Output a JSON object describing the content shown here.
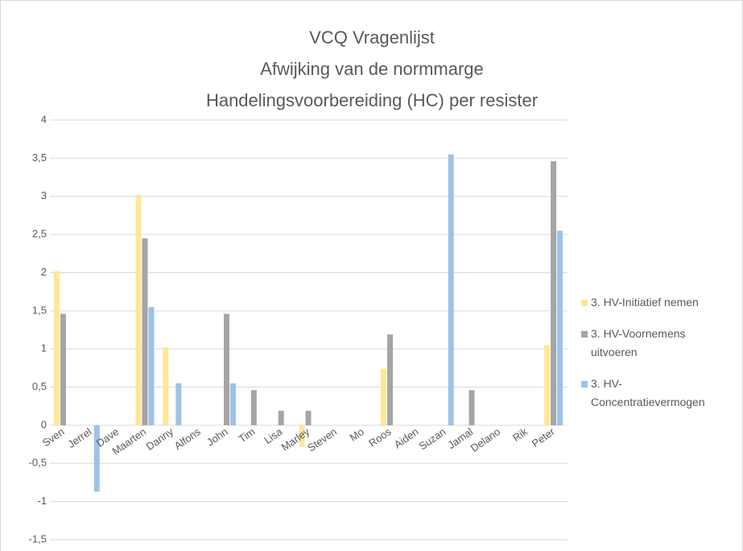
{
  "chart_data": {
    "type": "bar",
    "title": [
      "VCQ Vragenlijst",
      "Afwijking van de normmarge",
      "Handelingsvoorbereiding  (HC) per resister"
    ],
    "categories": [
      "Sven",
      "Jerrel",
      "Dave",
      "Maarten",
      "Danny",
      "Alfons",
      "John",
      "Tim",
      "Lisa",
      "Marley",
      "Steven",
      "Mo",
      "Roos",
      "Aiden",
      "Suzan",
      "Jamal",
      "Delano",
      "Rik",
      "Peter"
    ],
    "series": [
      {
        "name": "3. HV-Initiatief nemen",
        "color": "#ffe699",
        "values": [
          2.02,
          0,
          0,
          3.02,
          1.02,
          0,
          0,
          0,
          0,
          -0.28,
          0,
          0,
          0.74,
          0,
          0,
          0.01,
          0,
          0,
          1.05
        ]
      },
      {
        "name": "3. HV-Voornemens uitvoeren",
        "color": "#a5a5a5",
        "values": [
          1.46,
          0,
          0,
          2.45,
          0,
          0,
          1.46,
          0.46,
          0.19,
          0.19,
          0,
          0,
          1.19,
          0,
          0,
          0.46,
          0,
          0,
          3.46
        ]
      },
      {
        "name": "3. HV-Concentratievermogen",
        "color": "#9dc3e6",
        "values": [
          0,
          -0.87,
          0,
          1.55,
          0.55,
          0,
          0.55,
          0,
          0,
          0,
          0,
          0,
          0,
          0,
          3.55,
          0,
          0,
          0,
          2.55
        ]
      }
    ],
    "ylim": [
      -1.5,
      4
    ],
    "yticks": [
      {
        "value": -1.5,
        "label": "-1,5"
      },
      -1,
      {
        "value": -0.5,
        "label": "-0,5"
      },
      0,
      {
        "value": 0.5,
        "label": "0,5"
      },
      1,
      {
        "value": 1.5,
        "label": "1,5"
      },
      2,
      {
        "value": 2.5,
        "label": "2,5"
      },
      3,
      {
        "value": 3.5,
        "label": "3,5"
      },
      4
    ],
    "grid": true,
    "legend": "right"
  }
}
